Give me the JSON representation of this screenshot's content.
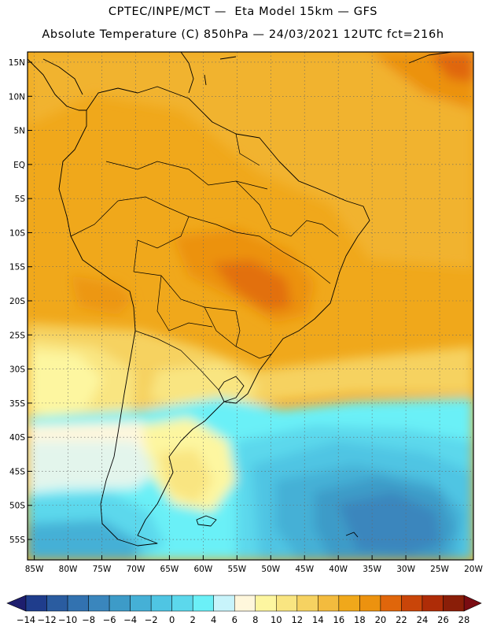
{
  "header": {
    "line1": "CPTEC/INPE/MCT —  Eta Model 15km — GFS",
    "line2": "Absolute Temperature (C) 850hPa — 24/03/2021 12UTC fct=216h"
  },
  "map": {
    "lat_labels": [
      "15N",
      "10N",
      "5N",
      "EQ",
      "5S",
      "10S",
      "15S",
      "20S",
      "25S",
      "30S",
      "35S",
      "40S",
      "45S",
      "50S",
      "55S"
    ],
    "lon_labels": [
      "85W",
      "80W",
      "75W",
      "70W",
      "65W",
      "60W",
      "55W",
      "50W",
      "45W",
      "40W",
      "35W",
      "30W",
      "25W",
      "20W"
    ],
    "lat_range": [
      -58,
      16.5
    ],
    "lon_range": [
      -86,
      -20
    ]
  },
  "colorbar": {
    "labels": [
      "-14",
      "-12",
      "-10",
      "-8",
      "-6",
      "-4",
      "-2",
      "0",
      "2",
      "4",
      "6",
      "8",
      "10",
      "12",
      "14",
      "16",
      "18",
      "20",
      "22",
      "24",
      "26",
      "28"
    ],
    "colors": [
      "#1f3d8c",
      "#2a5ca0",
      "#3272b0",
      "#3a86bd",
      "#3d9bc8",
      "#45b0d6",
      "#4fc5e3",
      "#5cd8ec",
      "#6bf0f7",
      "#c8f4fb",
      "#fff7dc",
      "#fdf6a0",
      "#f9e581",
      "#f6d261",
      "#f3bb3e",
      "#f0a81b",
      "#ec920f",
      "#e0660b",
      "#c94509",
      "#ae2c07",
      "#8a1e08"
    ],
    "left_arrow_color": "#1e1e6e",
    "right_arrow_color": "#7a0c12"
  }
}
